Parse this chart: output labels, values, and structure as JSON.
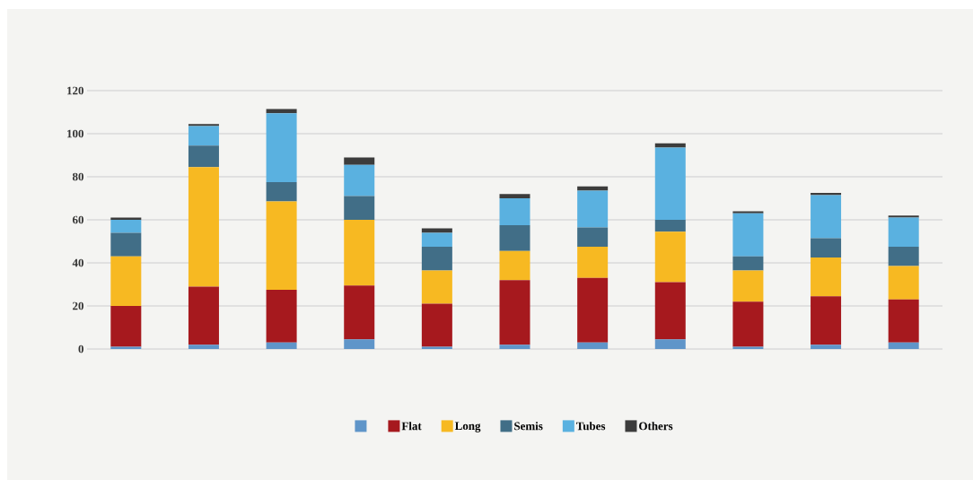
{
  "chart_data": {
    "type": "bar",
    "stacked": true,
    "categories": [
      null,
      null,
      null,
      null,
      null,
      null,
      null,
      null,
      null,
      null,
      null
    ],
    "ylim": [
      0,
      120
    ],
    "yticks": [
      0,
      20,
      40,
      60,
      80,
      100,
      120
    ],
    "grid": "y",
    "legend": "bottom",
    "series": [
      {
        "color": "#5f95c9",
        "values": [
          1,
          2,
          3,
          4.5,
          1,
          2,
          3,
          4.5,
          1,
          2,
          3
        ]
      },
      {
        "name": "Flat",
        "color": "#a6191e",
        "values": [
          19,
          27,
          24.5,
          25,
          20,
          30,
          30,
          26.5,
          21,
          22.5,
          20
        ]
      },
      {
        "name": "Long",
        "color": "#f7b922",
        "values": [
          23,
          55.5,
          41,
          30.5,
          15.5,
          13.5,
          14.5,
          23.5,
          14.5,
          18,
          15.5
        ]
      },
      {
        "name": "Semis",
        "color": "#416e87",
        "values": [
          11,
          10,
          9,
          11,
          11,
          12,
          9,
          5.5,
          6.5,
          9,
          9
        ]
      },
      {
        "name": "Tubes",
        "color": "#5ab1e0",
        "values": [
          6,
          9,
          32,
          14.5,
          6.5,
          12.5,
          17,
          33.5,
          20,
          20,
          13.5
        ]
      },
      {
        "name": "Others",
        "color": "#3c3c3c",
        "values": [
          1,
          1,
          2,
          3.5,
          2,
          2,
          2,
          2,
          1,
          1,
          1
        ]
      }
    ]
  }
}
